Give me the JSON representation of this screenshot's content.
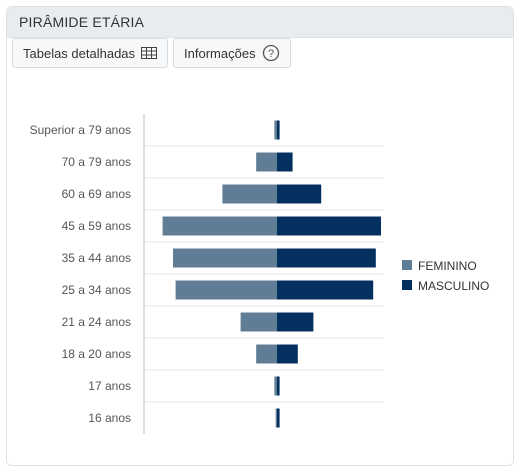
{
  "card": {
    "title": "PIRÂMIDE ETÁRIA"
  },
  "toolbar": {
    "tables_label": "Tabelas detalhadas",
    "info_label": "Informações",
    "tables_icon": "table-icon",
    "info_icon": "help-circle-icon"
  },
  "colors": {
    "feminino": "#5f7d95",
    "masculino": "#03305f"
  },
  "chart_data": {
    "type": "bar",
    "orientation": "horizontal",
    "layout": "population-pyramid",
    "categories": [
      "Superior a 79 anos",
      "70 a 79 anos",
      "60 a 69 anos",
      "45 a 59 anos",
      "35 a 44 anos",
      "25 a 34 anos",
      "21 a 24 anos",
      "18 a 20 anos",
      "17 anos",
      "16 anos"
    ],
    "series": [
      {
        "name": "FEMININO",
        "values": [
          1,
          8,
          21,
          44,
          40,
          39,
          14,
          8,
          1,
          0.5
        ]
      },
      {
        "name": "MASCULINO",
        "values": [
          1,
          6,
          17,
          40,
          38,
          37,
          14,
          8,
          1,
          1
        ]
      }
    ],
    "xlim": [
      -44,
      40
    ],
    "grid": true,
    "legend_position": "right"
  }
}
